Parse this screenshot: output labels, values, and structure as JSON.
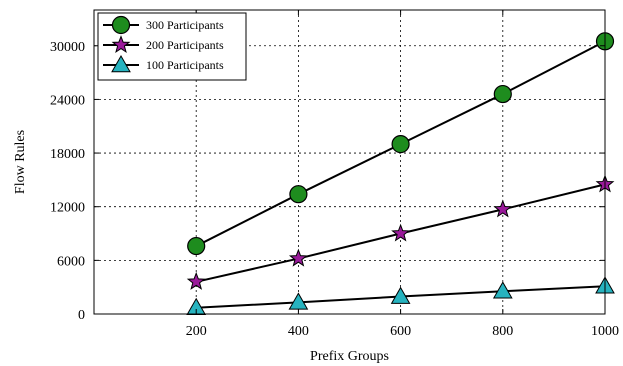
{
  "chart_data": {
    "type": "line",
    "xlabel": "Prefix Groups",
    "ylabel": "Flow Rules",
    "x": [
      200,
      400,
      600,
      800,
      1000
    ],
    "xlim": [
      0,
      1000
    ],
    "ylim": [
      0,
      34000
    ],
    "xticks": [
      "200",
      "400",
      "600",
      "800",
      "1000"
    ],
    "yticks": [
      "0",
      "6000",
      "12000",
      "18000",
      "24000",
      "30000"
    ],
    "grid": true,
    "legend_position": "top-left",
    "series": [
      {
        "name": "300 Participants",
        "values": [
          7600,
          13400,
          19000,
          24600,
          30500
        ],
        "marker": "circle",
        "color": "#1e8c1e"
      },
      {
        "name": "200 Participants",
        "values": [
          3600,
          6200,
          9000,
          11700,
          14500
        ],
        "marker": "star",
        "color": "#9a1a9a"
      },
      {
        "name": "100 Participants",
        "values": [
          700,
          1300,
          1950,
          2550,
          3100
        ],
        "marker": "triangle",
        "color": "#27b3bf"
      }
    ]
  }
}
